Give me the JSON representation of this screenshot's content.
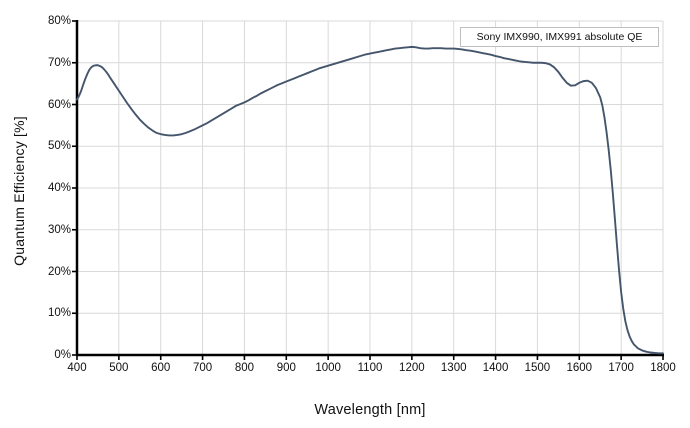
{
  "colors": {
    "curve": "#45556b",
    "grid": "#d9d9d9",
    "axis": "#000000",
    "text": "#111111",
    "legend_border": "#bfbfbf",
    "background": "#ffffff"
  },
  "chart_data": {
    "type": "line",
    "title": "",
    "xlabel": "Wavelength [nm]",
    "ylabel": "Quantum Efficiency [%]",
    "xlim": [
      400,
      1800
    ],
    "ylim": [
      0,
      80
    ],
    "grid": true,
    "legend_position": "top-right-inside",
    "x_ticks": [
      400,
      500,
      600,
      700,
      800,
      900,
      1000,
      1100,
      1200,
      1300,
      1400,
      1500,
      1600,
      1700,
      1800
    ],
    "x_tick_labels": [
      "400",
      "500",
      "600",
      "700",
      "800",
      "900",
      "1000",
      "1100",
      "1200",
      "1300",
      "1400",
      "1500",
      "1600",
      "1700",
      "1800"
    ],
    "y_ticks": [
      0,
      10,
      20,
      30,
      40,
      50,
      60,
      70,
      80
    ],
    "y_tick_labels": [
      "0%",
      "10%",
      "20%",
      "30%",
      "40%",
      "50%",
      "60%",
      "70%",
      "80%"
    ],
    "series": [
      {
        "name": "Sony IMX990, IMX991 absolute QE",
        "color": "#45556b",
        "points": [
          [
            400,
            61.2
          ],
          [
            405,
            62.1
          ],
          [
            410,
            63.3
          ],
          [
            415,
            64.8
          ],
          [
            420,
            66.2
          ],
          [
            425,
            67.4
          ],
          [
            430,
            68.4
          ],
          [
            435,
            69.0
          ],
          [
            440,
            69.3
          ],
          [
            445,
            69.4
          ],
          [
            450,
            69.4
          ],
          [
            455,
            69.2
          ],
          [
            460,
            68.9
          ],
          [
            465,
            68.4
          ],
          [
            470,
            67.8
          ],
          [
            475,
            67.1
          ],
          [
            480,
            66.3
          ],
          [
            490,
            64.8
          ],
          [
            500,
            63.3
          ],
          [
            510,
            61.8
          ],
          [
            520,
            60.3
          ],
          [
            530,
            58.9
          ],
          [
            540,
            57.6
          ],
          [
            550,
            56.4
          ],
          [
            560,
            55.4
          ],
          [
            570,
            54.5
          ],
          [
            580,
            53.8
          ],
          [
            590,
            53.2
          ],
          [
            600,
            52.9
          ],
          [
            610,
            52.7
          ],
          [
            620,
            52.6
          ],
          [
            630,
            52.6
          ],
          [
            640,
            52.7
          ],
          [
            650,
            52.9
          ],
          [
            660,
            53.2
          ],
          [
            670,
            53.6
          ],
          [
            680,
            54.0
          ],
          [
            690,
            54.5
          ],
          [
            700,
            55.0
          ],
          [
            710,
            55.5
          ],
          [
            720,
            56.1
          ],
          [
            730,
            56.7
          ],
          [
            740,
            57.3
          ],
          [
            750,
            57.9
          ],
          [
            760,
            58.5
          ],
          [
            770,
            59.1
          ],
          [
            780,
            59.7
          ],
          [
            790,
            60.1
          ],
          [
            800,
            60.5
          ],
          [
            810,
            61.0
          ],
          [
            820,
            61.6
          ],
          [
            830,
            62.1
          ],
          [
            840,
            62.7
          ],
          [
            850,
            63.2
          ],
          [
            860,
            63.7
          ],
          [
            870,
            64.2
          ],
          [
            880,
            64.7
          ],
          [
            890,
            65.1
          ],
          [
            900,
            65.5
          ],
          [
            910,
            65.9
          ],
          [
            920,
            66.3
          ],
          [
            930,
            66.7
          ],
          [
            940,
            67.1
          ],
          [
            950,
            67.5
          ],
          [
            960,
            67.9
          ],
          [
            970,
            68.3
          ],
          [
            980,
            68.7
          ],
          [
            990,
            69.0
          ],
          [
            1000,
            69.3
          ],
          [
            1010,
            69.6
          ],
          [
            1020,
            69.9
          ],
          [
            1030,
            70.2
          ],
          [
            1040,
            70.5
          ],
          [
            1050,
            70.8
          ],
          [
            1060,
            71.1
          ],
          [
            1070,
            71.4
          ],
          [
            1080,
            71.7
          ],
          [
            1090,
            72.0
          ],
          [
            1100,
            72.2
          ],
          [
            1110,
            72.4
          ],
          [
            1120,
            72.6
          ],
          [
            1130,
            72.8
          ],
          [
            1140,
            73.0
          ],
          [
            1150,
            73.2
          ],
          [
            1160,
            73.4
          ],
          [
            1170,
            73.5
          ],
          [
            1180,
            73.6
          ],
          [
            1190,
            73.7
          ],
          [
            1200,
            73.8
          ],
          [
            1210,
            73.7
          ],
          [
            1220,
            73.5
          ],
          [
            1230,
            73.4
          ],
          [
            1240,
            73.4
          ],
          [
            1250,
            73.5
          ],
          [
            1260,
            73.5
          ],
          [
            1270,
            73.5
          ],
          [
            1280,
            73.4
          ],
          [
            1290,
            73.4
          ],
          [
            1300,
            73.4
          ],
          [
            1310,
            73.3
          ],
          [
            1320,
            73.2
          ],
          [
            1330,
            73.0
          ],
          [
            1340,
            72.9
          ],
          [
            1350,
            72.7
          ],
          [
            1360,
            72.5
          ],
          [
            1370,
            72.3
          ],
          [
            1380,
            72.1
          ],
          [
            1390,
            71.9
          ],
          [
            1400,
            71.6
          ],
          [
            1410,
            71.4
          ],
          [
            1420,
            71.1
          ],
          [
            1430,
            70.9
          ],
          [
            1440,
            70.7
          ],
          [
            1450,
            70.5
          ],
          [
            1460,
            70.3
          ],
          [
            1470,
            70.2
          ],
          [
            1480,
            70.1
          ],
          [
            1490,
            70.0
          ],
          [
            1500,
            70.0
          ],
          [
            1510,
            70.0
          ],
          [
            1520,
            69.9
          ],
          [
            1530,
            69.6
          ],
          [
            1540,
            68.9
          ],
          [
            1550,
            67.8
          ],
          [
            1560,
            66.4
          ],
          [
            1570,
            65.2
          ],
          [
            1580,
            64.5
          ],
          [
            1590,
            64.6
          ],
          [
            1600,
            65.2
          ],
          [
            1610,
            65.6
          ],
          [
            1620,
            65.7
          ],
          [
            1630,
            65.2
          ],
          [
            1640,
            63.9
          ],
          [
            1650,
            61.7
          ],
          [
            1655,
            59.8
          ],
          [
            1660,
            57.0
          ],
          [
            1665,
            53.5
          ],
          [
            1670,
            49.3
          ],
          [
            1675,
            44.5
          ],
          [
            1680,
            38.9
          ],
          [
            1685,
            32.7
          ],
          [
            1690,
            26.3
          ],
          [
            1695,
            20.3
          ],
          [
            1700,
            15.1
          ],
          [
            1705,
            11.1
          ],
          [
            1710,
            8.1
          ],
          [
            1715,
            6.0
          ],
          [
            1720,
            4.5
          ],
          [
            1725,
            3.4
          ],
          [
            1730,
            2.6
          ],
          [
            1740,
            1.6
          ],
          [
            1750,
            1.1
          ],
          [
            1760,
            0.8
          ],
          [
            1770,
            0.6
          ],
          [
            1780,
            0.5
          ],
          [
            1790,
            0.4
          ],
          [
            1800,
            0.4
          ]
        ]
      }
    ]
  }
}
